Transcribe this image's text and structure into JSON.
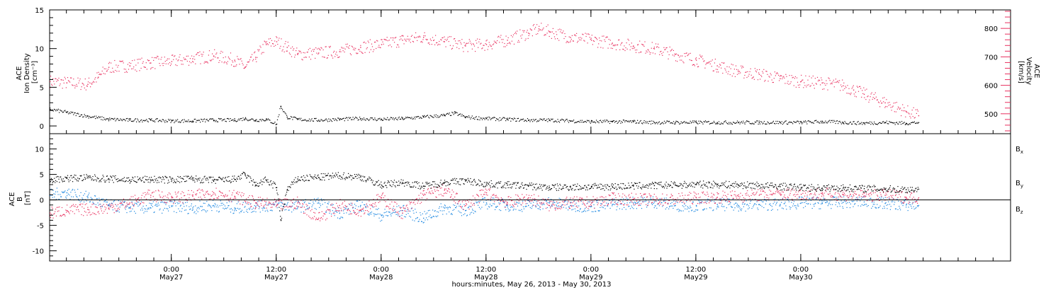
{
  "chart_data": [
    {
      "type": "scatter",
      "panel": "top",
      "left_axis": {
        "title_lines": [
          "ACE",
          "Ion Density",
          "[cm⁻³]"
        ],
        "ticks": [
          0,
          5,
          10,
          15
        ],
        "ylim": [
          -1,
          15
        ]
      },
      "right_axis": {
        "title_lines": [
          "ACE",
          "Velocity",
          "[km/s]"
        ],
        "ticks": [
          500,
          600,
          700,
          800
        ],
        "ylim": [
          430,
          865
        ],
        "color": "#e8305f"
      },
      "series": [
        {
          "name": "Ion Density",
          "axis": "left",
          "color": "#000000",
          "points": [
            [
              -0.58,
              2.2
            ],
            [
              -0.5,
              1.8
            ],
            [
              -0.4,
              1.3
            ],
            [
              -0.3,
              0.9
            ],
            [
              -0.2,
              0.8
            ],
            [
              -0.1,
              0.8
            ],
            [
              0,
              0.7
            ],
            [
              0.1,
              0.7
            ],
            [
              0.2,
              0.8
            ],
            [
              0.3,
              0.8
            ],
            [
              0.35,
              1.0
            ],
            [
              0.4,
              0.8
            ],
            [
              0.45,
              0.9
            ],
            [
              0.5,
              0.3
            ],
            [
              0.52,
              2.6
            ],
            [
              0.55,
              1.2
            ],
            [
              0.6,
              0.9
            ],
            [
              0.7,
              0.8
            ],
            [
              0.8,
              0.9
            ],
            [
              0.9,
              1.0
            ],
            [
              1.0,
              0.9
            ],
            [
              1.1,
              1.0
            ],
            [
              1.2,
              1.2
            ],
            [
              1.3,
              1.4
            ],
            [
              1.35,
              1.7
            ],
            [
              1.4,
              1.2
            ],
            [
              1.5,
              1.0
            ],
            [
              1.6,
              0.9
            ],
            [
              1.7,
              0.8
            ],
            [
              1.8,
              0.8
            ],
            [
              1.9,
              0.7
            ],
            [
              2.0,
              0.6
            ],
            [
              2.1,
              0.6
            ],
            [
              2.2,
              0.6
            ],
            [
              2.3,
              0.5
            ],
            [
              2.4,
              0.5
            ],
            [
              2.5,
              0.5
            ],
            [
              2.6,
              0.5
            ],
            [
              2.7,
              0.5
            ],
            [
              2.8,
              0.5
            ],
            [
              2.9,
              0.5
            ],
            [
              3.0,
              0.5
            ],
            [
              3.1,
              0.6
            ],
            [
              3.2,
              0.5
            ],
            [
              3.3,
              0.4
            ],
            [
              3.4,
              0.5
            ],
            [
              3.5,
              0.4
            ],
            [
              3.56,
              0.5
            ]
          ]
        },
        {
          "name": "Velocity",
          "axis": "right",
          "color": "#e8305f",
          "points": [
            [
              -0.58,
              615
            ],
            [
              -0.5,
              610
            ],
            [
              -0.4,
              605
            ],
            [
              -0.35,
              630
            ],
            [
              -0.3,
              665
            ],
            [
              -0.2,
              670
            ],
            [
              -0.1,
              680
            ],
            [
              0,
              685
            ],
            [
              0.1,
              695
            ],
            [
              0.2,
              705
            ],
            [
              0.3,
              690
            ],
            [
              0.35,
              665
            ],
            [
              0.4,
              700
            ],
            [
              0.45,
              745
            ],
            [
              0.5,
              755
            ],
            [
              0.55,
              735
            ],
            [
              0.6,
              710
            ],
            [
              0.7,
              715
            ],
            [
              0.8,
              720
            ],
            [
              0.9,
              735
            ],
            [
              1.0,
              745
            ],
            [
              1.1,
              760
            ],
            [
              1.2,
              770
            ],
            [
              1.3,
              755
            ],
            [
              1.4,
              740
            ],
            [
              1.5,
              745
            ],
            [
              1.6,
              760
            ],
            [
              1.7,
              785
            ],
            [
              1.75,
              800
            ],
            [
              1.8,
              790
            ],
            [
              1.9,
              770
            ],
            [
              2.0,
              760
            ],
            [
              2.1,
              750
            ],
            [
              2.2,
              740
            ],
            [
              2.3,
              730
            ],
            [
              2.4,
              710
            ],
            [
              2.5,
              690
            ],
            [
              2.6,
              670
            ],
            [
              2.7,
              650
            ],
            [
              2.8,
              640
            ],
            [
              2.9,
              625
            ],
            [
              3.0,
              615
            ],
            [
              3.1,
              610
            ],
            [
              3.2,
              600
            ],
            [
              3.25,
              585
            ],
            [
              3.3,
              570
            ],
            [
              3.35,
              555
            ],
            [
              3.4,
              540
            ],
            [
              3.5,
              510
            ],
            [
              3.56,
              495
            ]
          ]
        }
      ]
    },
    {
      "type": "scatter",
      "panel": "bottom",
      "left_axis": {
        "title_lines": [
          "ACE",
          "B",
          "[nT]"
        ],
        "ticks": [
          -10,
          -5,
          0,
          5,
          10
        ],
        "ylim": [
          -12,
          13
        ]
      },
      "zero_line": true,
      "series": [
        {
          "name": "Bx",
          "color": "#000000",
          "points": [
            [
              -0.58,
              4.0
            ],
            [
              -0.5,
              4.3
            ],
            [
              -0.4,
              4.4
            ],
            [
              -0.3,
              4.2
            ],
            [
              -0.2,
              4.0
            ],
            [
              -0.1,
              4.1
            ],
            [
              0,
              4.0
            ],
            [
              0.1,
              4.2
            ],
            [
              0.2,
              3.9
            ],
            [
              0.3,
              4.1
            ],
            [
              0.35,
              5.0
            ],
            [
              0.4,
              3.0
            ],
            [
              0.45,
              4.0
            ],
            [
              0.5,
              2.5
            ],
            [
              0.52,
              -3.8
            ],
            [
              0.55,
              2.0
            ],
            [
              0.6,
              4.2
            ],
            [
              0.7,
              4.5
            ],
            [
              0.8,
              4.8
            ],
            [
              0.9,
              4.6
            ],
            [
              1.0,
              3.0
            ],
            [
              1.1,
              3.5
            ],
            [
              1.2,
              2.8
            ],
            [
              1.3,
              3.5
            ],
            [
              1.4,
              3.8
            ],
            [
              1.5,
              3.2
            ],
            [
              1.6,
              3.0
            ],
            [
              1.7,
              2.8
            ],
            [
              1.8,
              2.5
            ],
            [
              1.9,
              2.6
            ],
            [
              2.0,
              2.6
            ],
            [
              2.1,
              2.7
            ],
            [
              2.2,
              2.8
            ],
            [
              2.3,
              2.9
            ],
            [
              2.4,
              3.0
            ],
            [
              2.5,
              3.1
            ],
            [
              2.6,
              3.1
            ],
            [
              2.7,
              3.0
            ],
            [
              2.8,
              2.9
            ],
            [
              2.9,
              2.7
            ],
            [
              3.0,
              2.5
            ],
            [
              3.1,
              2.4
            ],
            [
              3.2,
              2.4
            ],
            [
              3.3,
              2.3
            ],
            [
              3.4,
              2.2
            ],
            [
              3.5,
              2.1
            ],
            [
              3.56,
              2.2
            ]
          ]
        },
        {
          "name": "By",
          "color": "#1a86e0",
          "points": [
            [
              -0.58,
              1.0
            ],
            [
              -0.5,
              1.5
            ],
            [
              -0.4,
              0.5
            ],
            [
              -0.3,
              -1.0
            ],
            [
              -0.2,
              -1.4
            ],
            [
              -0.1,
              -1.5
            ],
            [
              0,
              -1.2
            ],
            [
              0.1,
              -1.5
            ],
            [
              0.2,
              -1.0
            ],
            [
              0.3,
              -1.5
            ],
            [
              0.4,
              -1.2
            ],
            [
              0.5,
              -1.0
            ],
            [
              0.6,
              -1.3
            ],
            [
              0.7,
              -0.5
            ],
            [
              0.8,
              -2.5
            ],
            [
              0.9,
              -1.0
            ],
            [
              1.0,
              -3.0
            ],
            [
              1.1,
              -2.0
            ],
            [
              1.2,
              -3.5
            ],
            [
              1.3,
              -1.5
            ],
            [
              1.4,
              -2.0
            ],
            [
              1.5,
              -0.5
            ],
            [
              1.6,
              -1.0
            ],
            [
              1.7,
              -1.0
            ],
            [
              1.8,
              -0.5
            ],
            [
              1.9,
              -1.0
            ],
            [
              2.0,
              -1.2
            ],
            [
              2.1,
              -0.8
            ],
            [
              2.2,
              -0.5
            ],
            [
              2.3,
              -0.3
            ],
            [
              2.4,
              -1.0
            ],
            [
              2.5,
              -1.0
            ],
            [
              2.6,
              -0.8
            ],
            [
              2.7,
              -1.0
            ],
            [
              2.8,
              -0.8
            ],
            [
              2.9,
              -0.8
            ],
            [
              3.0,
              -0.5
            ],
            [
              3.1,
              -0.5
            ],
            [
              3.2,
              -0.4
            ],
            [
              3.3,
              -0.3
            ],
            [
              3.4,
              -0.6
            ],
            [
              3.5,
              -0.9
            ],
            [
              3.56,
              -1.0
            ]
          ]
        },
        {
          "name": "Bz",
          "color": "#e8305f",
          "points": [
            [
              -0.58,
              -2.5
            ],
            [
              -0.5,
              -2.0
            ],
            [
              -0.4,
              -1.8
            ],
            [
              -0.3,
              -1.5
            ],
            [
              -0.2,
              -0.5
            ],
            [
              -0.1,
              1.0
            ],
            [
              0,
              0.5
            ],
            [
              0.1,
              0.8
            ],
            [
              0.2,
              1.5
            ],
            [
              0.3,
              0.8
            ],
            [
              0.4,
              -0.5
            ],
            [
              0.5,
              -1.0
            ],
            [
              0.6,
              -0.5
            ],
            [
              0.7,
              -3.5
            ],
            [
              0.8,
              -1.0
            ],
            [
              0.9,
              -2.0
            ],
            [
              1.0,
              0.5
            ],
            [
              1.1,
              -2.5
            ],
            [
              1.2,
              1.0
            ],
            [
              1.3,
              2.0
            ],
            [
              1.4,
              -1.0
            ],
            [
              1.5,
              1.5
            ],
            [
              1.6,
              -0.5
            ],
            [
              1.7,
              0.5
            ],
            [
              1.8,
              -1.0
            ],
            [
              1.9,
              -0.5
            ],
            [
              2.0,
              -0.5
            ],
            [
              2.1,
              0.3
            ],
            [
              2.2,
              0.2
            ],
            [
              2.3,
              0.1
            ],
            [
              2.4,
              0.2
            ],
            [
              2.5,
              0.5
            ],
            [
              2.6,
              0.6
            ],
            [
              2.7,
              0.8
            ],
            [
              2.8,
              1.0
            ],
            [
              2.9,
              1.2
            ],
            [
              3.0,
              1.2
            ],
            [
              3.1,
              1.3
            ],
            [
              3.2,
              1.1
            ],
            [
              3.3,
              0.9
            ],
            [
              3.4,
              1.0
            ],
            [
              3.5,
              0.6
            ],
            [
              3.56,
              0.5
            ]
          ]
        }
      ],
      "legend": {
        "placement": "right",
        "entries": [
          {
            "label": "B",
            "sub": "x",
            "color": "#000000"
          },
          {
            "label": "B",
            "sub": "y",
            "color": "#1a86e0"
          },
          {
            "label": "B",
            "sub": "z",
            "color": "#e8305f"
          }
        ]
      }
    }
  ],
  "x_axis": {
    "xlim": [
      -0.58,
      4.0
    ],
    "ticks": [
      {
        "t": 0,
        "time": "0:00",
        "date": "May27"
      },
      {
        "t": 0.5,
        "time": "12:00",
        "date": "May27"
      },
      {
        "t": 1,
        "time": "0:00",
        "date": "May28"
      },
      {
        "t": 1.5,
        "time": "12:00",
        "date": "May28"
      },
      {
        "t": 2,
        "time": "0:00",
        "date": "May29"
      },
      {
        "t": 2.5,
        "time": "12:00",
        "date": "May29"
      },
      {
        "t": 3,
        "time": "0:00",
        "date": "May30"
      }
    ],
    "title": "hours:minutes, May 26, 2013 - May 30, 2013"
  }
}
